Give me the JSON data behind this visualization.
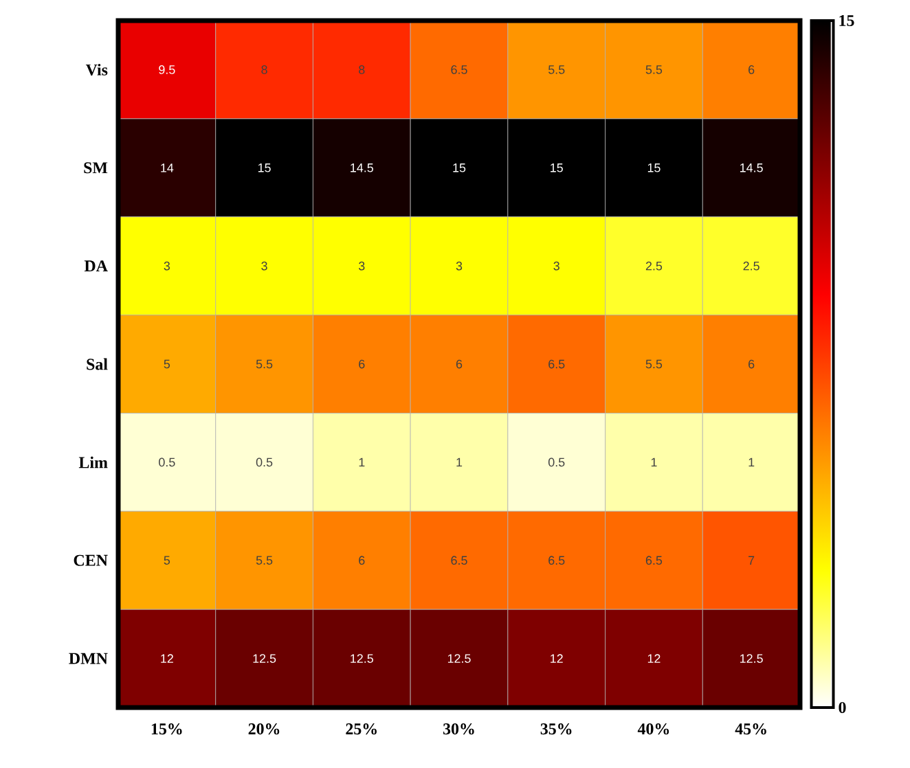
{
  "chart_data": {
    "type": "heatmap",
    "categories": [
      "15%",
      "20%",
      "25%",
      "30%",
      "35%",
      "40%",
      "45%"
    ],
    "y_categories": [
      "Vis",
      "SM",
      "DA",
      "Sal",
      "Lim",
      "CEN",
      "DMN"
    ],
    "cells": [
      [
        9.5,
        8,
        8,
        6.5,
        5.5,
        5.5,
        6
      ],
      [
        14,
        15,
        14.5,
        15,
        15,
        15,
        14.5
      ],
      [
        3,
        3,
        3,
        3,
        3,
        2.5,
        2.5
      ],
      [
        5,
        5.5,
        6,
        6,
        6.5,
        5.5,
        6
      ],
      [
        0.5,
        0.5,
        1,
        1,
        0.5,
        1,
        1
      ],
      [
        5,
        5.5,
        6,
        6.5,
        6.5,
        6.5,
        7
      ],
      [
        12,
        12.5,
        12.5,
        12.5,
        12,
        12,
        12.5
      ]
    ],
    "clim": [
      0,
      15
    ],
    "cticks": [
      0,
      15
    ],
    "data_labels": true
  }
}
